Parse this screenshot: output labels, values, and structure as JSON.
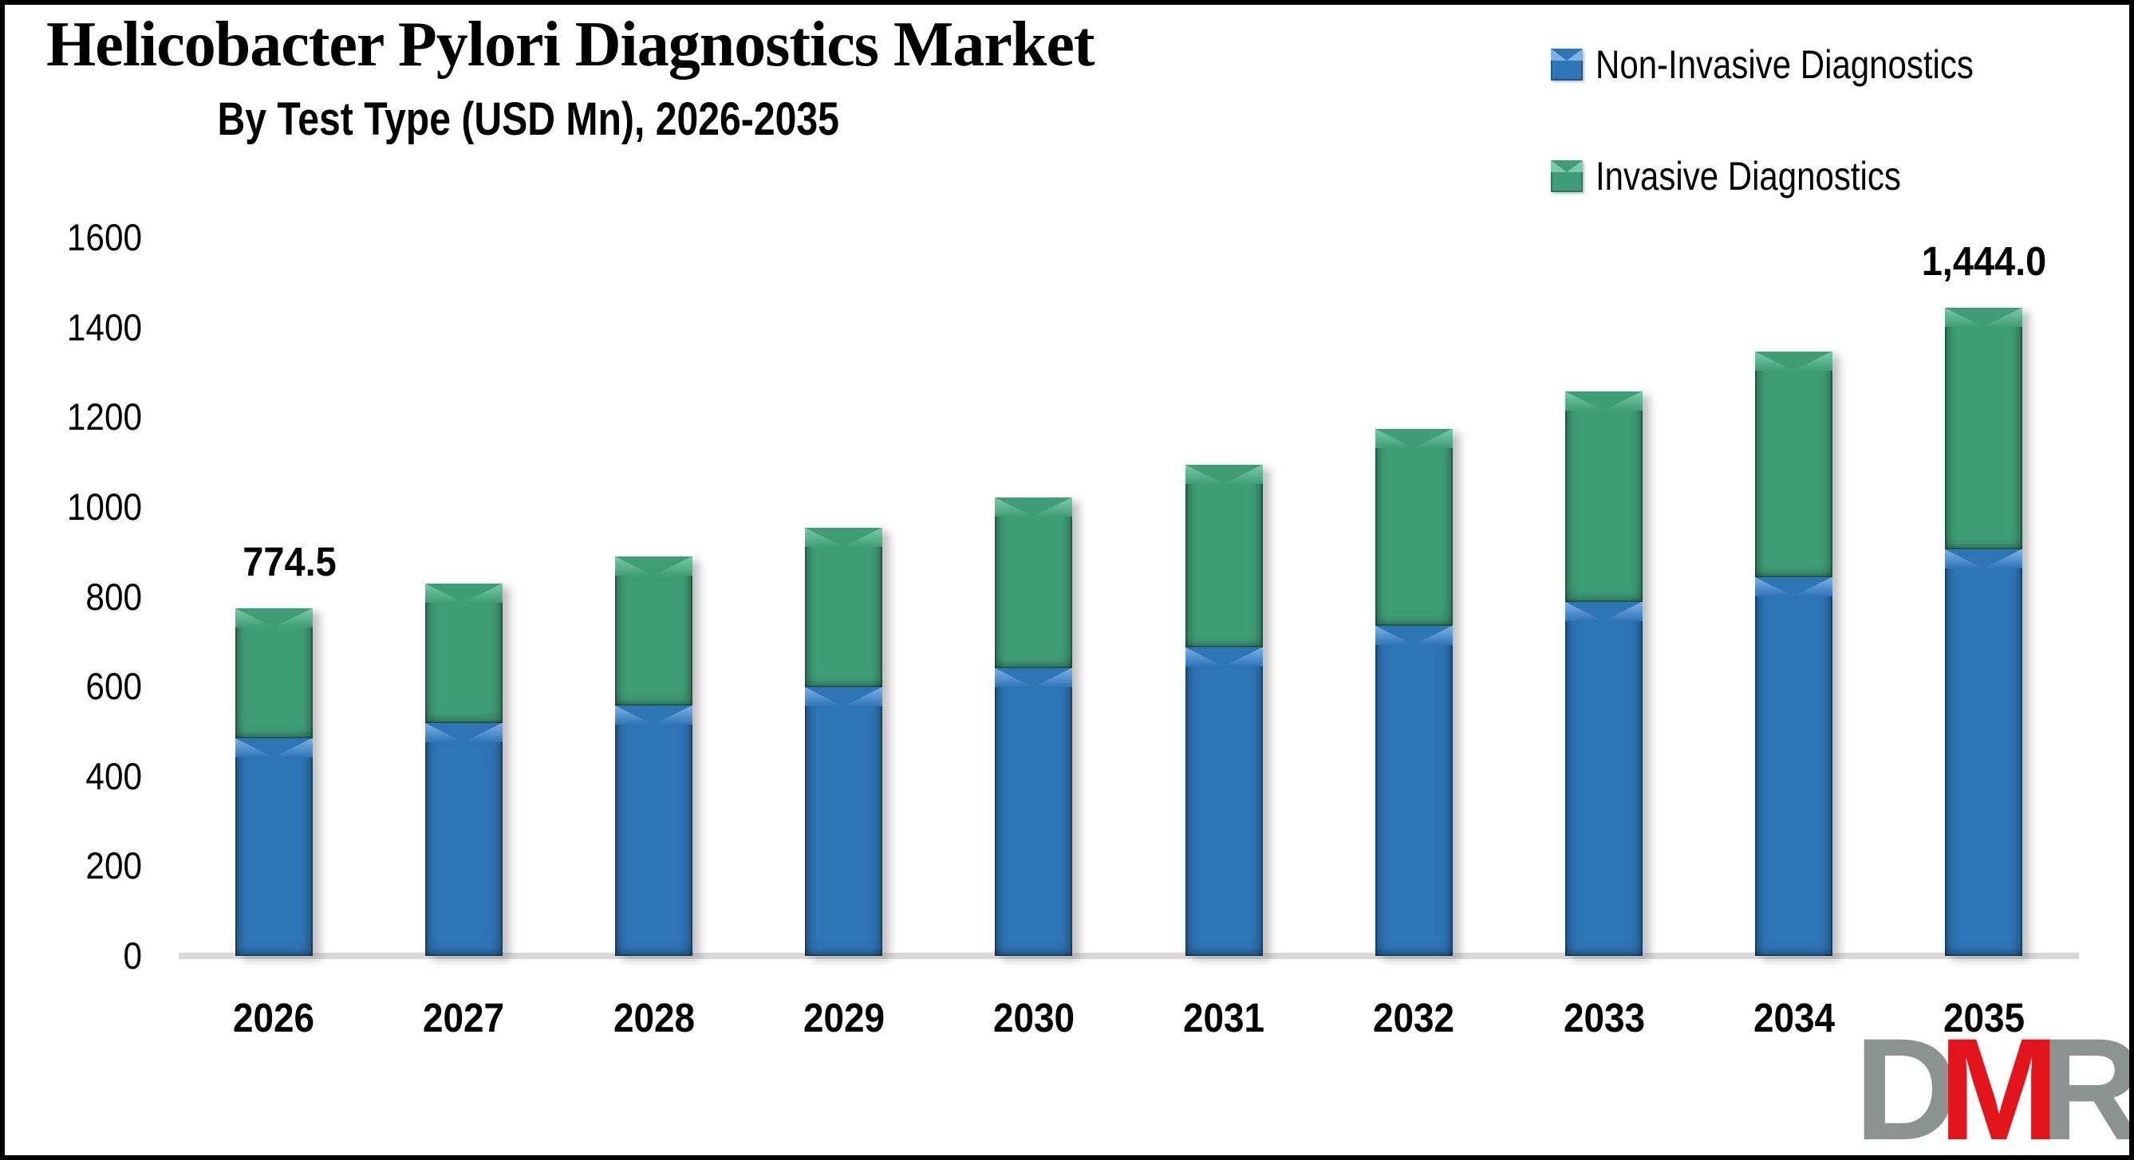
{
  "title": "Helicobacter Pylori Diagnostics Market",
  "subtitle": "By Test Type (USD Mn), 2026-2035",
  "legend": {
    "items": [
      {
        "label": "Non-Invasive Diagnostics",
        "color": "#2E75B6",
        "light": "#7DB2E8"
      },
      {
        "label": "Invasive Diagnostics",
        "color": "#3F9E78",
        "light": "#7CCBA8"
      }
    ]
  },
  "chart_data": {
    "type": "bar",
    "stacked": true,
    "title": "Helicobacter Pylori Diagnostics Market",
    "subtitle": "By Test Type (USD Mn), 2026-2035",
    "categories": [
      "2026",
      "2027",
      "2028",
      "2029",
      "2030",
      "2031",
      "2032",
      "2033",
      "2034",
      "2035"
    ],
    "series": [
      {
        "name": "Non-Invasive Diagnostics",
        "color": "#2E75B6",
        "light": "#7DB2E8",
        "values": [
          484,
          519,
          557,
          598,
          641,
          687,
          736,
          788,
          844,
          905
        ]
      },
      {
        "name": "Invasive Diagnostics",
        "color": "#3F9E78",
        "light": "#7CCBA8",
        "values": [
          290.5,
          311,
          332.5,
          355,
          380.5,
          407.5,
          437,
          468.5,
          502.5,
          539
        ]
      }
    ],
    "totals": [
      774.5,
      830,
      889.5,
      953,
      1021.5,
      1094.5,
      1173,
      1256.5,
      1346.5,
      1444
    ],
    "data_labels": [
      {
        "index": 0,
        "text": "774.5"
      },
      {
        "index": 9,
        "text": "1,444.0"
      }
    ],
    "yticks": [
      0,
      200,
      400,
      600,
      800,
      1000,
      1200,
      1400,
      1600
    ],
    "ylim": [
      0,
      1600
    ],
    "xlabel": "",
    "ylabel": "",
    "grid": false,
    "legend_position": "top-right",
    "axis_line_color": "#d9d9d9"
  },
  "logo": {
    "letters": [
      {
        "char": "D",
        "color": "#8B9490"
      },
      {
        "char": "M",
        "color": "#E2151C"
      },
      {
        "char": "R",
        "color": "#8B9490"
      }
    ]
  }
}
